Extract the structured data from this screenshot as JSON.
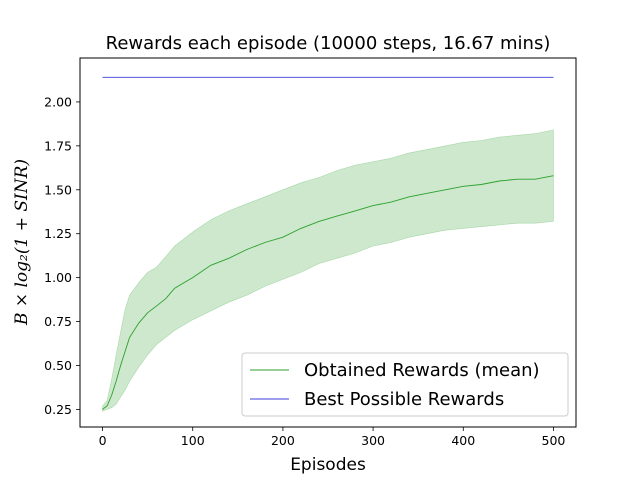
{
  "chart_data": {
    "type": "line",
    "title": "Rewards each episode (10000 steps, 16.67 mins)",
    "xlabel": "Episodes",
    "ylabel": "B × log₂(1 + SINR)",
    "xlim": [
      -25,
      525
    ],
    "ylim": [
      0.15,
      2.25
    ],
    "xticks": [
      0,
      100,
      200,
      300,
      400,
      500
    ],
    "xtick_labels": [
      "0",
      "100",
      "200",
      "300",
      "400",
      "500"
    ],
    "yticks": [
      0.25,
      0.5,
      0.75,
      1.0,
      1.25,
      1.5,
      1.75,
      2.0
    ],
    "ytick_labels": [
      "0.25",
      "0.50",
      "0.75",
      "1.00",
      "1.25",
      "1.50",
      "1.75",
      "2.00"
    ],
    "grid": false,
    "legend_position": "lower-right",
    "series": [
      {
        "name": "Obtained Rewards (mean)",
        "color": "#2ca02c",
        "x": [
          0,
          5,
          10,
          15,
          20,
          25,
          30,
          40,
          50,
          60,
          70,
          80,
          90,
          100,
          120,
          140,
          160,
          180,
          200,
          220,
          240,
          260,
          280,
          300,
          320,
          340,
          360,
          380,
          400,
          420,
          440,
          460,
          480,
          500
        ],
        "y": [
          0.25,
          0.27,
          0.33,
          0.41,
          0.5,
          0.58,
          0.66,
          0.74,
          0.8,
          0.84,
          0.88,
          0.94,
          0.97,
          1.0,
          1.07,
          1.11,
          1.16,
          1.2,
          1.23,
          1.28,
          1.32,
          1.35,
          1.38,
          1.41,
          1.43,
          1.46,
          1.48,
          1.5,
          1.52,
          1.53,
          1.55,
          1.56,
          1.56,
          1.58
        ],
        "band_lower": [
          0.24,
          0.25,
          0.26,
          0.28,
          0.32,
          0.36,
          0.41,
          0.49,
          0.56,
          0.62,
          0.66,
          0.7,
          0.73,
          0.76,
          0.81,
          0.86,
          0.9,
          0.95,
          0.99,
          1.03,
          1.08,
          1.11,
          1.14,
          1.18,
          1.2,
          1.23,
          1.25,
          1.27,
          1.28,
          1.29,
          1.3,
          1.31,
          1.31,
          1.32
        ],
        "band_upper": [
          0.27,
          0.3,
          0.42,
          0.56,
          0.69,
          0.82,
          0.9,
          0.97,
          1.03,
          1.06,
          1.12,
          1.18,
          1.22,
          1.26,
          1.33,
          1.38,
          1.42,
          1.46,
          1.5,
          1.54,
          1.57,
          1.61,
          1.64,
          1.66,
          1.68,
          1.71,
          1.73,
          1.75,
          1.77,
          1.78,
          1.8,
          1.81,
          1.82,
          1.84
        ]
      },
      {
        "name": "Best Possible Rewards",
        "color": "#3c3cdc",
        "x": [
          0,
          500
        ],
        "y": [
          2.14,
          2.14
        ]
      }
    ]
  }
}
